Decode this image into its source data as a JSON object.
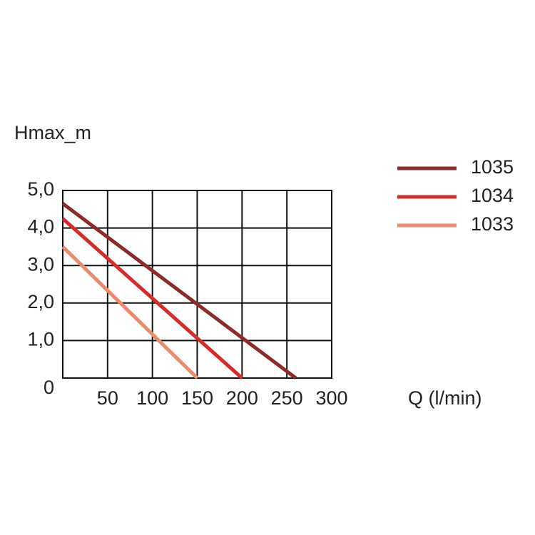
{
  "chart_data": {
    "type": "line",
    "y_label": "Hmax_m",
    "x_label": "Q (l/min)",
    "series": [
      {
        "name": "1035",
        "color": "#8b2b2b",
        "x": [
          0,
          260
        ],
        "values": [
          4.65,
          0
        ]
      },
      {
        "name": "1034",
        "color": "#d62b2b",
        "x": [
          0,
          200
        ],
        "values": [
          4.25,
          0
        ]
      },
      {
        "name": "1033",
        "color": "#eb8a6e",
        "x": [
          0,
          150
        ],
        "values": [
          3.5,
          0
        ]
      }
    ],
    "xlim": [
      0,
      300
    ],
    "xticks": [
      50,
      100,
      150,
      200,
      250,
      300
    ],
    "ylim": [
      0,
      5
    ],
    "yticks": [
      0,
      {
        "value": 1,
        "label": "1,0"
      },
      {
        "value": 2,
        "label": "2,0"
      },
      {
        "value": 3,
        "label": "3,0"
      },
      {
        "value": 4,
        "label": "4,0"
      },
      {
        "value": 5,
        "label": "5,0"
      }
    ],
    "grid": true,
    "legend": "top-right"
  }
}
